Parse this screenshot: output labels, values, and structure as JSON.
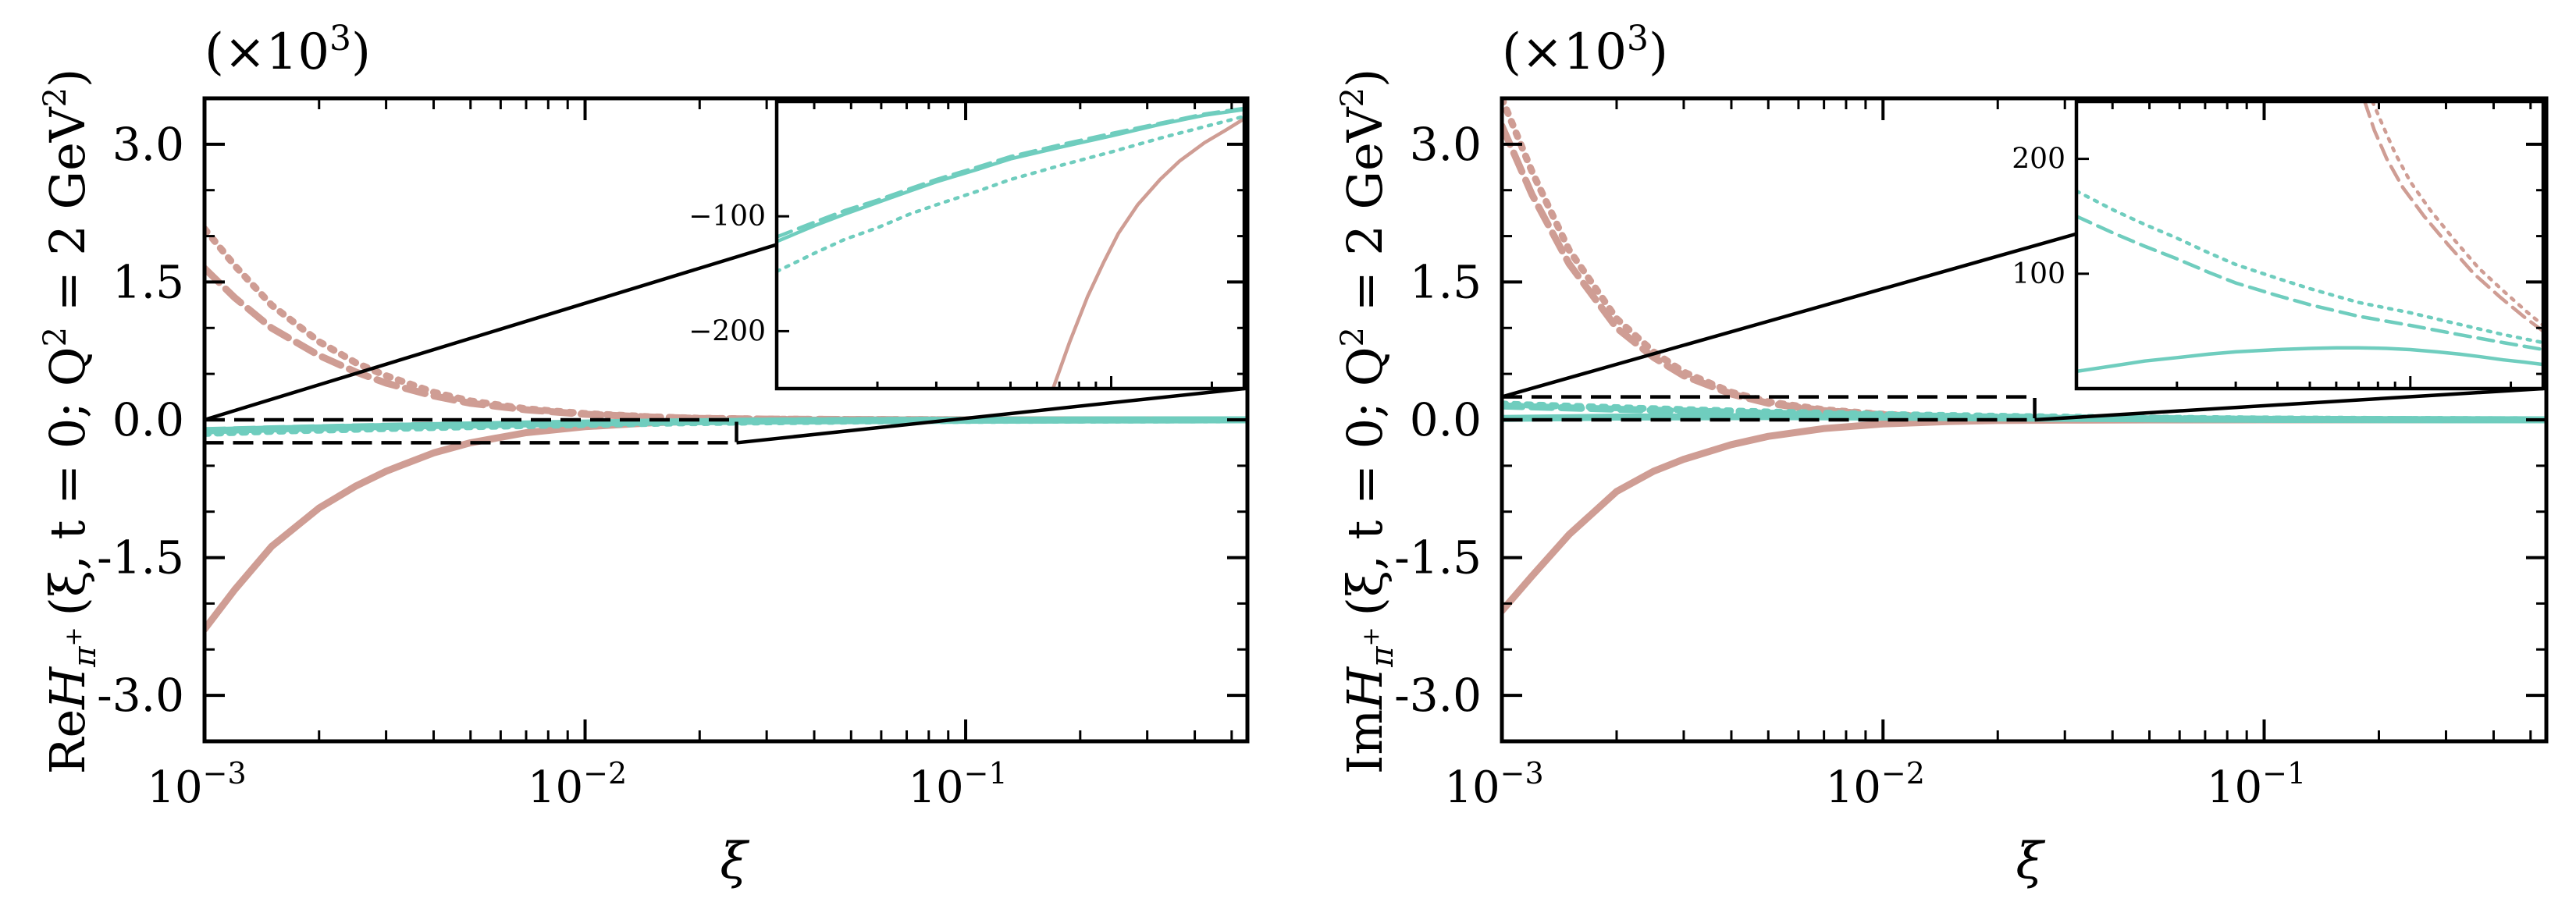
{
  "colors": {
    "red": "#cf9d94",
    "teal": "#6fcdbe",
    "axis": "#000000"
  },
  "panels": [
    {
      "id": "left",
      "ylabel": "ReH_{π+} (ξ, t = 0; Q² = 2 GeV²)",
      "ylabel_parts": {
        "prefix": "Re",
        "H": "H",
        "sub": "π",
        "subsup": "+",
        "args": "(ξ, t = 0; Q",
        "q2exp": "2",
        "mid": " = 2 GeV",
        "gevexp": "2",
        "close": ")"
      },
      "scale_label": "(×10³)",
      "scale_parts": {
        "base": "(×10",
        "exp": "3",
        "close": ")"
      },
      "xlabel": "ξ",
      "xlim": [
        0.001,
        0.55
      ],
      "ylim": [
        -3500,
        3500
      ],
      "yticks": [
        3000,
        1500,
        0,
        -1500,
        -3000
      ],
      "ytick_labels": [
        "3.0",
        "1.5",
        "0.0",
        "-1.5",
        "-3.0"
      ],
      "xticks": [
        0.001,
        0.01,
        0.1
      ],
      "xtick_labels": [
        {
          "base": "10",
          "exp": "−3"
        },
        {
          "base": "10",
          "exp": "−2"
        },
        {
          "base": "10",
          "exp": "−1"
        }
      ],
      "zoom_box": {
        "x": [
          0.001,
          0.025
        ],
        "y": [
          -250,
          0
        ]
      },
      "inset": {
        "xlim": [
          0.001,
          0.025
        ],
        "ylim": [
          -250,
          0
        ],
        "yticks": [
          -100,
          -200
        ],
        "ytick_labels": [
          "−100",
          "−200"
        ]
      },
      "series": [
        {
          "name": "red-solid",
          "color": "red",
          "dash": "solid",
          "x": [
            0.001,
            0.0012,
            0.0015,
            0.002,
            0.0025,
            0.003,
            0.004,
            0.005,
            0.007,
            0.01,
            0.015,
            0.02,
            0.03,
            0.05,
            0.1,
            0.2,
            0.55
          ],
          "y": [
            -2280,
            -1850,
            -1380,
            -960,
            -720,
            -560,
            -360,
            -250,
            -140,
            -75,
            -32,
            -15,
            -6,
            -2,
            -1,
            0,
            0
          ]
        },
        {
          "name": "red-dashed",
          "color": "red",
          "dash": "dashed",
          "x": [
            0.001,
            0.0012,
            0.0015,
            0.002,
            0.0025,
            0.003,
            0.004,
            0.005,
            0.007,
            0.01,
            0.015,
            0.02,
            0.03,
            0.05,
            0.1,
            0.2,
            0.55
          ],
          "y": [
            1650,
            1330,
            1000,
            700,
            520,
            400,
            260,
            180,
            110,
            60,
            30,
            15,
            8,
            3,
            1,
            0,
            0
          ]
        },
        {
          "name": "red-dotted",
          "color": "red",
          "dash": "dotted",
          "x": [
            0.001,
            0.0012,
            0.0015,
            0.002,
            0.0025,
            0.003,
            0.004,
            0.005,
            0.007,
            0.01,
            0.015,
            0.02,
            0.03,
            0.05,
            0.1,
            0.2,
            0.55
          ],
          "y": [
            2080,
            1680,
            1250,
            850,
            620,
            480,
            300,
            205,
            120,
            68,
            32,
            17,
            8,
            3,
            1,
            0,
            0
          ]
        },
        {
          "name": "teal-solid",
          "color": "teal",
          "dash": "solid",
          "x": [
            0.001,
            0.0015,
            0.002,
            0.003,
            0.005,
            0.007,
            0.01,
            0.015,
            0.02,
            0.03,
            0.05,
            0.1,
            0.2,
            0.55
          ],
          "y": [
            -120,
            -100,
            -88,
            -72,
            -55,
            -45,
            -35,
            -25,
            -20,
            -14,
            -9,
            -5,
            -2,
            0
          ]
        },
        {
          "name": "teal-dashed",
          "color": "teal",
          "dash": "dashed",
          "x": [
            0.001,
            0.0015,
            0.002,
            0.003,
            0.005,
            0.007,
            0.01,
            0.015,
            0.02,
            0.03,
            0.05,
            0.1,
            0.2,
            0.55
          ],
          "y": [
            -117,
            -98,
            -86,
            -70,
            -54,
            -44,
            -34,
            -24,
            -19,
            -13,
            -8,
            -4,
            -2,
            0
          ]
        },
        {
          "name": "teal-dotted",
          "color": "teal",
          "dash": "dotted",
          "x": [
            0.001,
            0.0015,
            0.002,
            0.003,
            0.005,
            0.007,
            0.01,
            0.015,
            0.02,
            0.03,
            0.05,
            0.1,
            0.2,
            0.55
          ],
          "y": [
            -148,
            -125,
            -112,
            -95,
            -75,
            -63,
            -51,
            -38,
            -30,
            -22,
            -14,
            -7,
            -3,
            0
          ]
        }
      ],
      "inset_series": [
        {
          "name": "inset-red-solid",
          "color": "red",
          "dash": "solid",
          "x": [
            0.0067,
            0.0075,
            0.0085,
            0.0095,
            0.0105,
            0.012,
            0.014,
            0.016,
            0.019,
            0.022,
            0.025
          ],
          "y": [
            -250,
            -210,
            -170,
            -140,
            -115,
            -90,
            -68,
            -52,
            -36,
            -25,
            -15
          ]
        },
        {
          "name": "inset-teal-solid",
          "color": "teal",
          "dash": "solid",
          "x": [
            0.001,
            0.0013,
            0.0016,
            0.002,
            0.0025,
            0.003,
            0.004,
            0.005,
            0.007,
            0.01,
            0.014,
            0.019,
            0.025
          ],
          "y": [
            -122,
            -108,
            -98,
            -88,
            -78,
            -70,
            -59,
            -50,
            -40,
            -30,
            -20,
            -12,
            -7
          ]
        },
        {
          "name": "inset-teal-dashed",
          "color": "teal",
          "dash": "dashed",
          "x": [
            0.001,
            0.0013,
            0.0016,
            0.002,
            0.0025,
            0.003,
            0.004,
            0.005,
            0.007,
            0.01,
            0.014,
            0.019,
            0.025
          ],
          "y": [
            -118,
            -105,
            -95,
            -86,
            -76,
            -68,
            -57,
            -48,
            -38,
            -28,
            -19,
            -11,
            -6
          ]
        },
        {
          "name": "inset-teal-dotted",
          "color": "teal",
          "dash": "dotted",
          "x": [
            0.001,
            0.0013,
            0.0016,
            0.002,
            0.0025,
            0.003,
            0.004,
            0.005,
            0.007,
            0.01,
            0.014,
            0.019,
            0.025
          ],
          "y": [
            -148,
            -132,
            -120,
            -110,
            -98,
            -90,
            -78,
            -68,
            -56,
            -44,
            -32,
            -22,
            -13
          ]
        }
      ]
    },
    {
      "id": "right",
      "ylabel": "ImH_{π+} (ξ, t = 0; Q² = 2 GeV²)",
      "ylabel_parts": {
        "prefix": "Im",
        "H": "H",
        "sub": "π",
        "subsup": "+",
        "args": "(ξ, t = 0; Q",
        "q2exp": "2",
        "mid": " = 2 GeV",
        "gevexp": "2",
        "close": ")"
      },
      "scale_label": "(×10³)",
      "scale_parts": {
        "base": "(×10",
        "exp": "3",
        "close": ")"
      },
      "xlabel": "ξ",
      "xlim": [
        0.001,
        0.55
      ],
      "ylim": [
        -3500,
        3500
      ],
      "yticks": [
        3000,
        1500,
        0,
        -1500,
        -3000
      ],
      "ytick_labels": [
        "3.0",
        "1.5",
        "0.0",
        "-1.5",
        "-3.0"
      ],
      "xticks": [
        0.001,
        0.01,
        0.1
      ],
      "xtick_labels": [
        {
          "base": "10",
          "exp": "−3"
        },
        {
          "base": "10",
          "exp": "−2"
        },
        {
          "base": "10",
          "exp": "−1"
        }
      ],
      "zoom_box": {
        "x": [
          0.001,
          0.025
        ],
        "y": [
          0,
          250
        ]
      },
      "inset": {
        "xlim": [
          0.001,
          0.025
        ],
        "ylim": [
          0,
          250
        ],
        "yticks": [
          200,
          100
        ],
        "ytick_labels": [
          "200",
          "100"
        ]
      },
      "series": [
        {
          "name": "red-solid",
          "color": "red",
          "dash": "solid",
          "x": [
            0.001,
            0.0012,
            0.0015,
            0.002,
            0.0025,
            0.003,
            0.004,
            0.005,
            0.007,
            0.01,
            0.015,
            0.02,
            0.03,
            0.05,
            0.1,
            0.2,
            0.55
          ],
          "y": [
            -2080,
            -1700,
            -1250,
            -780,
            -560,
            -430,
            -270,
            -180,
            -95,
            -45,
            -18,
            -8,
            -3,
            -1,
            0,
            0,
            0
          ]
        },
        {
          "name": "red-dashed",
          "color": "red",
          "dash": "dashed",
          "x": [
            0.001,
            0.0012,
            0.0015,
            0.002,
            0.0025,
            0.003,
            0.004,
            0.005,
            0.007,
            0.01,
            0.015,
            0.02,
            0.03,
            0.05,
            0.1,
            0.2,
            0.55
          ],
          "y": [
            3200,
            2450,
            1700,
            1000,
            680,
            480,
            280,
            180,
            100,
            55,
            26,
            14,
            7,
            3,
            1,
            0,
            0
          ]
        },
        {
          "name": "red-dotted",
          "color": "red",
          "dash": "dotted",
          "x": [
            0.001,
            0.0012,
            0.0015,
            0.002,
            0.0025,
            0.003,
            0.004,
            0.005,
            0.007,
            0.01,
            0.015,
            0.02,
            0.03,
            0.05,
            0.1,
            0.2,
            0.55
          ],
          "y": [
            3500,
            2700,
            1850,
            1100,
            740,
            520,
            300,
            195,
            110,
            60,
            29,
            16,
            8,
            3,
            1,
            0,
            0
          ]
        },
        {
          "name": "teal-solid",
          "color": "teal",
          "dash": "solid",
          "x": [
            0.001,
            0.002,
            0.005,
            0.01,
            0.02,
            0.05,
            0.1,
            0.2,
            0.55
          ],
          "y": [
            15,
            30,
            35,
            30,
            20,
            10,
            5,
            2,
            0
          ]
        },
        {
          "name": "teal-dashed",
          "color": "teal",
          "dash": "dashed",
          "x": [
            0.001,
            0.002,
            0.005,
            0.01,
            0.02,
            0.05,
            0.1,
            0.2,
            0.55
          ],
          "y": [
            150,
            115,
            72,
            48,
            30,
            14,
            7,
            3,
            0
          ]
        },
        {
          "name": "teal-dotted",
          "color": "teal",
          "dash": "dotted",
          "x": [
            0.001,
            0.002,
            0.005,
            0.01,
            0.02,
            0.05,
            0.1,
            0.2,
            0.55
          ],
          "y": [
            172,
            132,
            85,
            58,
            38,
            18,
            9,
            4,
            0
          ]
        }
      ],
      "inset_series": [
        {
          "name": "inset-teal-solid",
          "color": "teal",
          "dash": "solid",
          "x": [
            0.001,
            0.0013,
            0.0016,
            0.002,
            0.0025,
            0.003,
            0.004,
            0.005,
            0.006,
            0.007,
            0.0085,
            0.01,
            0.012,
            0.014,
            0.016,
            0.019,
            0.022,
            0.025
          ],
          "y": [
            15,
            20,
            24,
            27,
            30,
            32,
            34,
            35,
            35.5,
            35.5,
            35,
            34,
            32,
            30,
            28,
            25,
            23,
            21
          ]
        },
        {
          "name": "inset-teal-dashed",
          "color": "teal",
          "dash": "dashed",
          "x": [
            0.001,
            0.0013,
            0.0016,
            0.002,
            0.0025,
            0.003,
            0.004,
            0.005,
            0.007,
            0.01,
            0.014,
            0.019,
            0.025
          ],
          "y": [
            150,
            135,
            124,
            113,
            101,
            92,
            81,
            73,
            63,
            55,
            47,
            40,
            34
          ]
        },
        {
          "name": "inset-teal-dotted",
          "color": "teal",
          "dash": "dotted",
          "x": [
            0.001,
            0.0013,
            0.0016,
            0.002,
            0.0025,
            0.003,
            0.004,
            0.005,
            0.007,
            0.01,
            0.014,
            0.019,
            0.025
          ],
          "y": [
            172,
            155,
            143,
            131,
            118,
            108,
            96,
            87,
            75,
            66,
            56,
            47,
            40
          ]
        },
        {
          "name": "inset-red-dashed",
          "color": "red",
          "dash": "dashed",
          "x": [
            0.0073,
            0.0078,
            0.0085,
            0.0095,
            0.011,
            0.013,
            0.0155,
            0.0185,
            0.022,
            0.025
          ],
          "y": [
            250,
            225,
            200,
            175,
            150,
            125,
            100,
            80,
            62,
            50
          ]
        },
        {
          "name": "inset-red-dotted",
          "color": "red",
          "dash": "dotted",
          "x": [
            0.0077,
            0.0083,
            0.009,
            0.01,
            0.0115,
            0.0135,
            0.016,
            0.019,
            0.0225,
            0.025
          ],
          "y": [
            250,
            228,
            205,
            180,
            155,
            130,
            105,
            85,
            66,
            55
          ]
        }
      ]
    }
  ]
}
